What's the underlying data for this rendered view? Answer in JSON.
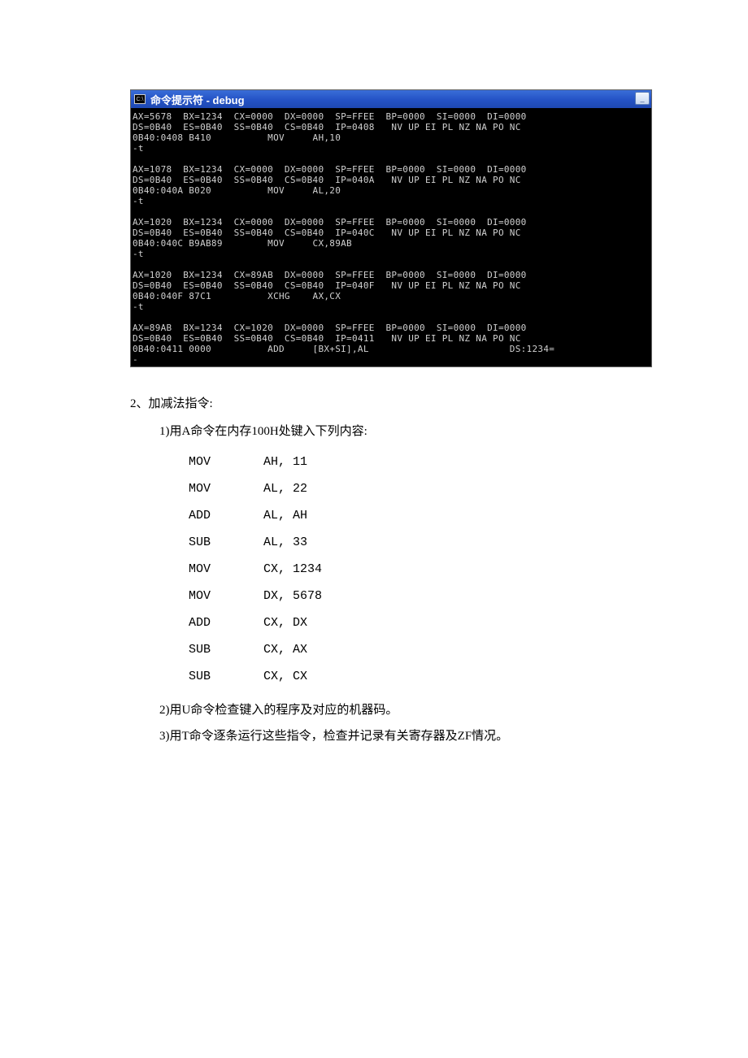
{
  "window": {
    "icon_text": "C:\\",
    "title": "命令提示符 - debug",
    "titlebar_bg_start": "#3a6ed8",
    "titlebar_bg_end": "#1e48b2",
    "title_color": "#ffffff",
    "console_bg": "#000000",
    "console_fg": "#d0d0d0"
  },
  "console_blocks": [
    {
      "regs1": "AX=5678  BX=1234  CX=0000  DX=0000  SP=FFEE  BP=0000  SI=0000  DI=0000",
      "regs2": "DS=0B40  ES=0B40  SS=0B40  CS=0B40  IP=0408   NV UP EI PL NZ NA PO NC",
      "code": "0B40:0408 B410          MOV     AH,10",
      "prompt": "-t"
    },
    {
      "regs1": "AX=1078  BX=1234  CX=0000  DX=0000  SP=FFEE  BP=0000  SI=0000  DI=0000",
      "regs2": "DS=0B40  ES=0B40  SS=0B40  CS=0B40  IP=040A   NV UP EI PL NZ NA PO NC",
      "code": "0B40:040A B020          MOV     AL,20",
      "prompt": "-t"
    },
    {
      "regs1": "AX=1020  BX=1234  CX=0000  DX=0000  SP=FFEE  BP=0000  SI=0000  DI=0000",
      "regs2": "DS=0B40  ES=0B40  SS=0B40  CS=0B40  IP=040C   NV UP EI PL NZ NA PO NC",
      "code": "0B40:040C B9AB89        MOV     CX,89AB",
      "prompt": "-t"
    },
    {
      "regs1": "AX=1020  BX=1234  CX=89AB  DX=0000  SP=FFEE  BP=0000  SI=0000  DI=0000",
      "regs2": "DS=0B40  ES=0B40  SS=0B40  CS=0B40  IP=040F   NV UP EI PL NZ NA PO NC",
      "code": "0B40:040F 87C1          XCHG    AX,CX",
      "prompt": "-t"
    },
    {
      "regs1": "AX=89AB  BX=1234  CX=1020  DX=0000  SP=FFEE  BP=0000  SI=0000  DI=0000",
      "regs2": "DS=0B40  ES=0B40  SS=0B40  CS=0B40  IP=0411   NV UP EI PL NZ NA PO NC",
      "code": "0B40:0411 0000          ADD     [BX+SI],AL                         DS:1234=",
      "prompt": "-"
    }
  ],
  "doc": {
    "heading": "2、加减法指令:",
    "sub1": "1)用A命令在内存100H处键入下列内容:",
    "instructions": [
      {
        "mnemonic": "MOV",
        "operands": "AH, 11"
      },
      {
        "mnemonic": "MOV",
        "operands": "AL, 22"
      },
      {
        "mnemonic": "ADD",
        "operands": "AL, AH"
      },
      {
        "mnemonic": "SUB",
        "operands": "AL, 33"
      },
      {
        "mnemonic": "MOV",
        "operands": "CX, 1234"
      },
      {
        "mnemonic": "MOV",
        "operands": "DX, 5678"
      },
      {
        "mnemonic": "ADD",
        "operands": "CX, DX"
      },
      {
        "mnemonic": "SUB",
        "operands": "CX, AX"
      },
      {
        "mnemonic": "SUB",
        "operands": "CX, CX"
      }
    ],
    "sub2": "2)用U命令检查键入的程序及对应的机器码。",
    "sub3": "3)用T命令逐条运行这些指令，检查并记录有关寄存器及ZF情况。"
  }
}
